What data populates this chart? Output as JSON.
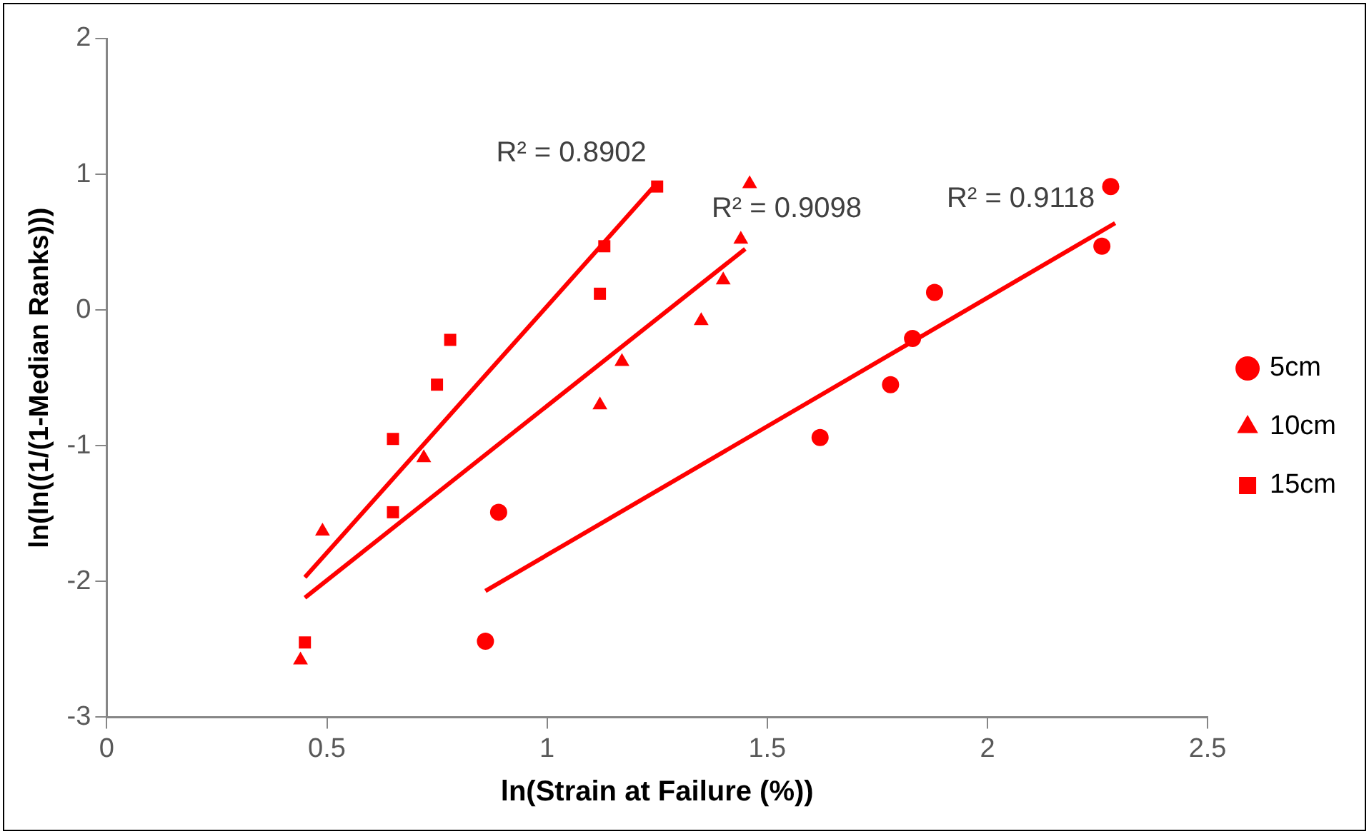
{
  "chart_data": {
    "type": "scatter",
    "xlabel": "ln(Strain at Failure (%))",
    "ylabel": "ln(ln((1/(1-Median Ranks)))",
    "xlim": [
      0,
      2.5
    ],
    "xticks": [
      0,
      0.5,
      1,
      1.5,
      2,
      2.5
    ],
    "ylim": [
      -3,
      2
    ],
    "yticks": [
      -3,
      -2,
      -1,
      0,
      1,
      2
    ],
    "grid": false,
    "legend": "right",
    "series": [
      {
        "name": "5cm",
        "color": "#ff0000",
        "marker": "circle",
        "x": [
          0.86,
          0.89,
          1.62,
          1.78,
          1.83,
          1.88,
          2.26,
          2.28
        ],
        "values": [
          -2.44,
          -1.49,
          -0.94,
          -0.55,
          -0.21,
          0.13,
          0.47,
          0.91
        ]
      },
      {
        "name": "10cm",
        "color": "#ff0000",
        "marker": "triangle",
        "x": [
          0.44,
          0.49,
          0.72,
          1.12,
          1.17,
          1.35,
          1.4,
          1.44,
          1.46
        ],
        "values": [
          -2.58,
          -1.63,
          -1.09,
          -0.7,
          -0.38,
          -0.08,
          0.22,
          0.52,
          0.93
        ]
      },
      {
        "name": "15cm",
        "color": "#ff0000",
        "marker": "square",
        "x": [
          0.45,
          0.65,
          0.65,
          0.75,
          0.78,
          1.12,
          1.13,
          1.25
        ],
        "values": [
          -2.45,
          -1.49,
          -0.95,
          -0.55,
          -0.22,
          0.12,
          0.47,
          0.91
        ]
      },
      {
        "type": "line",
        "color": "#ff0000",
        "marker": "none",
        "x": [
          0.45,
          1.24
        ],
        "values": [
          -1.97,
          0.9
        ]
      },
      {
        "type": "line",
        "color": "#ff0000",
        "marker": "none",
        "x": [
          0.45,
          1.45
        ],
        "values": [
          -2.12,
          0.45
        ]
      },
      {
        "type": "line",
        "color": "#ff0000",
        "marker": "none",
        "x": [
          0.86,
          2.29
        ],
        "values": [
          -2.07,
          0.64
        ]
      }
    ],
    "annotations": [
      "R² = 0.8902",
      "R² = 0.9098",
      "R² = 0.9118"
    ]
  }
}
